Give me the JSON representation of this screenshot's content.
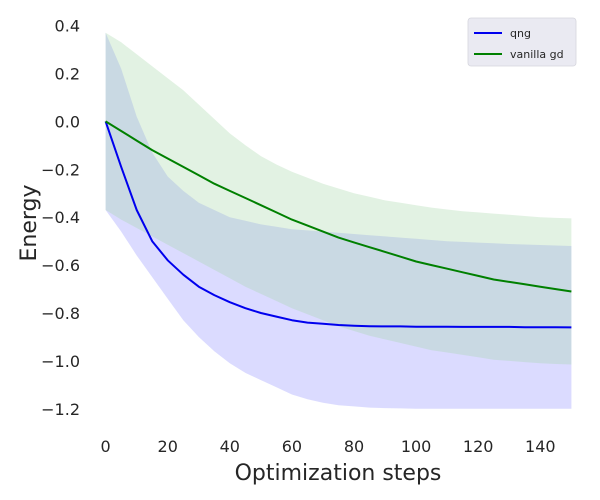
{
  "chart_data": {
    "type": "line",
    "title": "",
    "xlabel": "Optimization steps",
    "ylabel": "Energy",
    "xlim": [
      -6,
      156
    ],
    "ylim": [
      -1.28,
      0.44
    ],
    "x_ticks": [
      0,
      20,
      40,
      60,
      80,
      100,
      120,
      140
    ],
    "y_ticks": [
      0.4,
      0.2,
      0.0,
      -0.2,
      -0.4,
      -0.6,
      -0.8,
      -1.0,
      -1.2
    ],
    "x_tick_labels": [
      "0",
      "20",
      "40",
      "60",
      "80",
      "100",
      "120",
      "140"
    ],
    "y_tick_labels": [
      "0.4",
      "0.2",
      "0.0",
      "−0.2",
      "−0.4",
      "−0.6",
      "−0.8",
      "−1.0",
      "−1.2"
    ],
    "grid": false,
    "legend_position": "top-right",
    "x": [
      0,
      5,
      10,
      15,
      20,
      25,
      30,
      35,
      40,
      45,
      50,
      55,
      60,
      65,
      70,
      75,
      80,
      85,
      90,
      95,
      100,
      105,
      110,
      115,
      120,
      125,
      130,
      135,
      140,
      145,
      150
    ],
    "series": [
      {
        "name": "qng",
        "color": "#0000ee",
        "band_color": "#8f8fff",
        "values": [
          0.0,
          -0.19,
          -0.37,
          -0.5,
          -0.58,
          -0.64,
          -0.69,
          -0.725,
          -0.755,
          -0.78,
          -0.8,
          -0.815,
          -0.83,
          -0.84,
          -0.845,
          -0.85,
          -0.853,
          -0.855,
          -0.856,
          -0.856,
          -0.857,
          -0.857,
          -0.857,
          -0.858,
          -0.858,
          -0.858,
          -0.858,
          -0.859,
          -0.859,
          -0.859,
          -0.86
        ],
        "upper": [
          0.37,
          0.22,
          0.02,
          -0.13,
          -0.23,
          -0.29,
          -0.34,
          -0.37,
          -0.4,
          -0.415,
          -0.43,
          -0.44,
          -0.45,
          -0.455,
          -0.46,
          -0.465,
          -0.47,
          -0.475,
          -0.48,
          -0.485,
          -0.49,
          -0.495,
          -0.5,
          -0.503,
          -0.506,
          -0.509,
          -0.512,
          -0.514,
          -0.516,
          -0.518,
          -0.52
        ],
        "lower": [
          -0.37,
          -0.46,
          -0.56,
          -0.65,
          -0.74,
          -0.83,
          -0.9,
          -0.96,
          -1.01,
          -1.05,
          -1.08,
          -1.11,
          -1.14,
          -1.16,
          -1.175,
          -1.185,
          -1.19,
          -1.195,
          -1.197,
          -1.198,
          -1.2,
          -1.2,
          -1.2,
          -1.2,
          -1.2,
          -1.2,
          -1.2,
          -1.2,
          -1.2,
          -1.2,
          -1.2
        ]
      },
      {
        "name": "vanilla gd",
        "color": "#008000",
        "band_color": "#a5d6a7",
        "values": [
          0.0,
          -0.04,
          -0.08,
          -0.12,
          -0.155,
          -0.19,
          -0.225,
          -0.26,
          -0.29,
          -0.32,
          -0.35,
          -0.38,
          -0.41,
          -0.435,
          -0.46,
          -0.485,
          -0.505,
          -0.525,
          -0.545,
          -0.565,
          -0.585,
          -0.6,
          -0.615,
          -0.63,
          -0.645,
          -0.66,
          -0.67,
          -0.68,
          -0.69,
          -0.7,
          -0.71
        ],
        "upper": [
          0.37,
          0.33,
          0.28,
          0.23,
          0.18,
          0.13,
          0.07,
          0.01,
          -0.05,
          -0.1,
          -0.145,
          -0.18,
          -0.21,
          -0.235,
          -0.26,
          -0.28,
          -0.3,
          -0.315,
          -0.33,
          -0.34,
          -0.35,
          -0.36,
          -0.368,
          -0.375,
          -0.38,
          -0.385,
          -0.39,
          -0.395,
          -0.4,
          -0.403,
          -0.405
        ],
        "lower": [
          -0.37,
          -0.41,
          -0.445,
          -0.48,
          -0.515,
          -0.55,
          -0.585,
          -0.62,
          -0.655,
          -0.69,
          -0.72,
          -0.75,
          -0.78,
          -0.805,
          -0.83,
          -0.855,
          -0.875,
          -0.895,
          -0.91,
          -0.925,
          -0.94,
          -0.955,
          -0.965,
          -0.975,
          -0.985,
          -0.995,
          -1.0,
          -1.005,
          -1.01,
          -1.013,
          -1.015
        ]
      }
    ]
  }
}
